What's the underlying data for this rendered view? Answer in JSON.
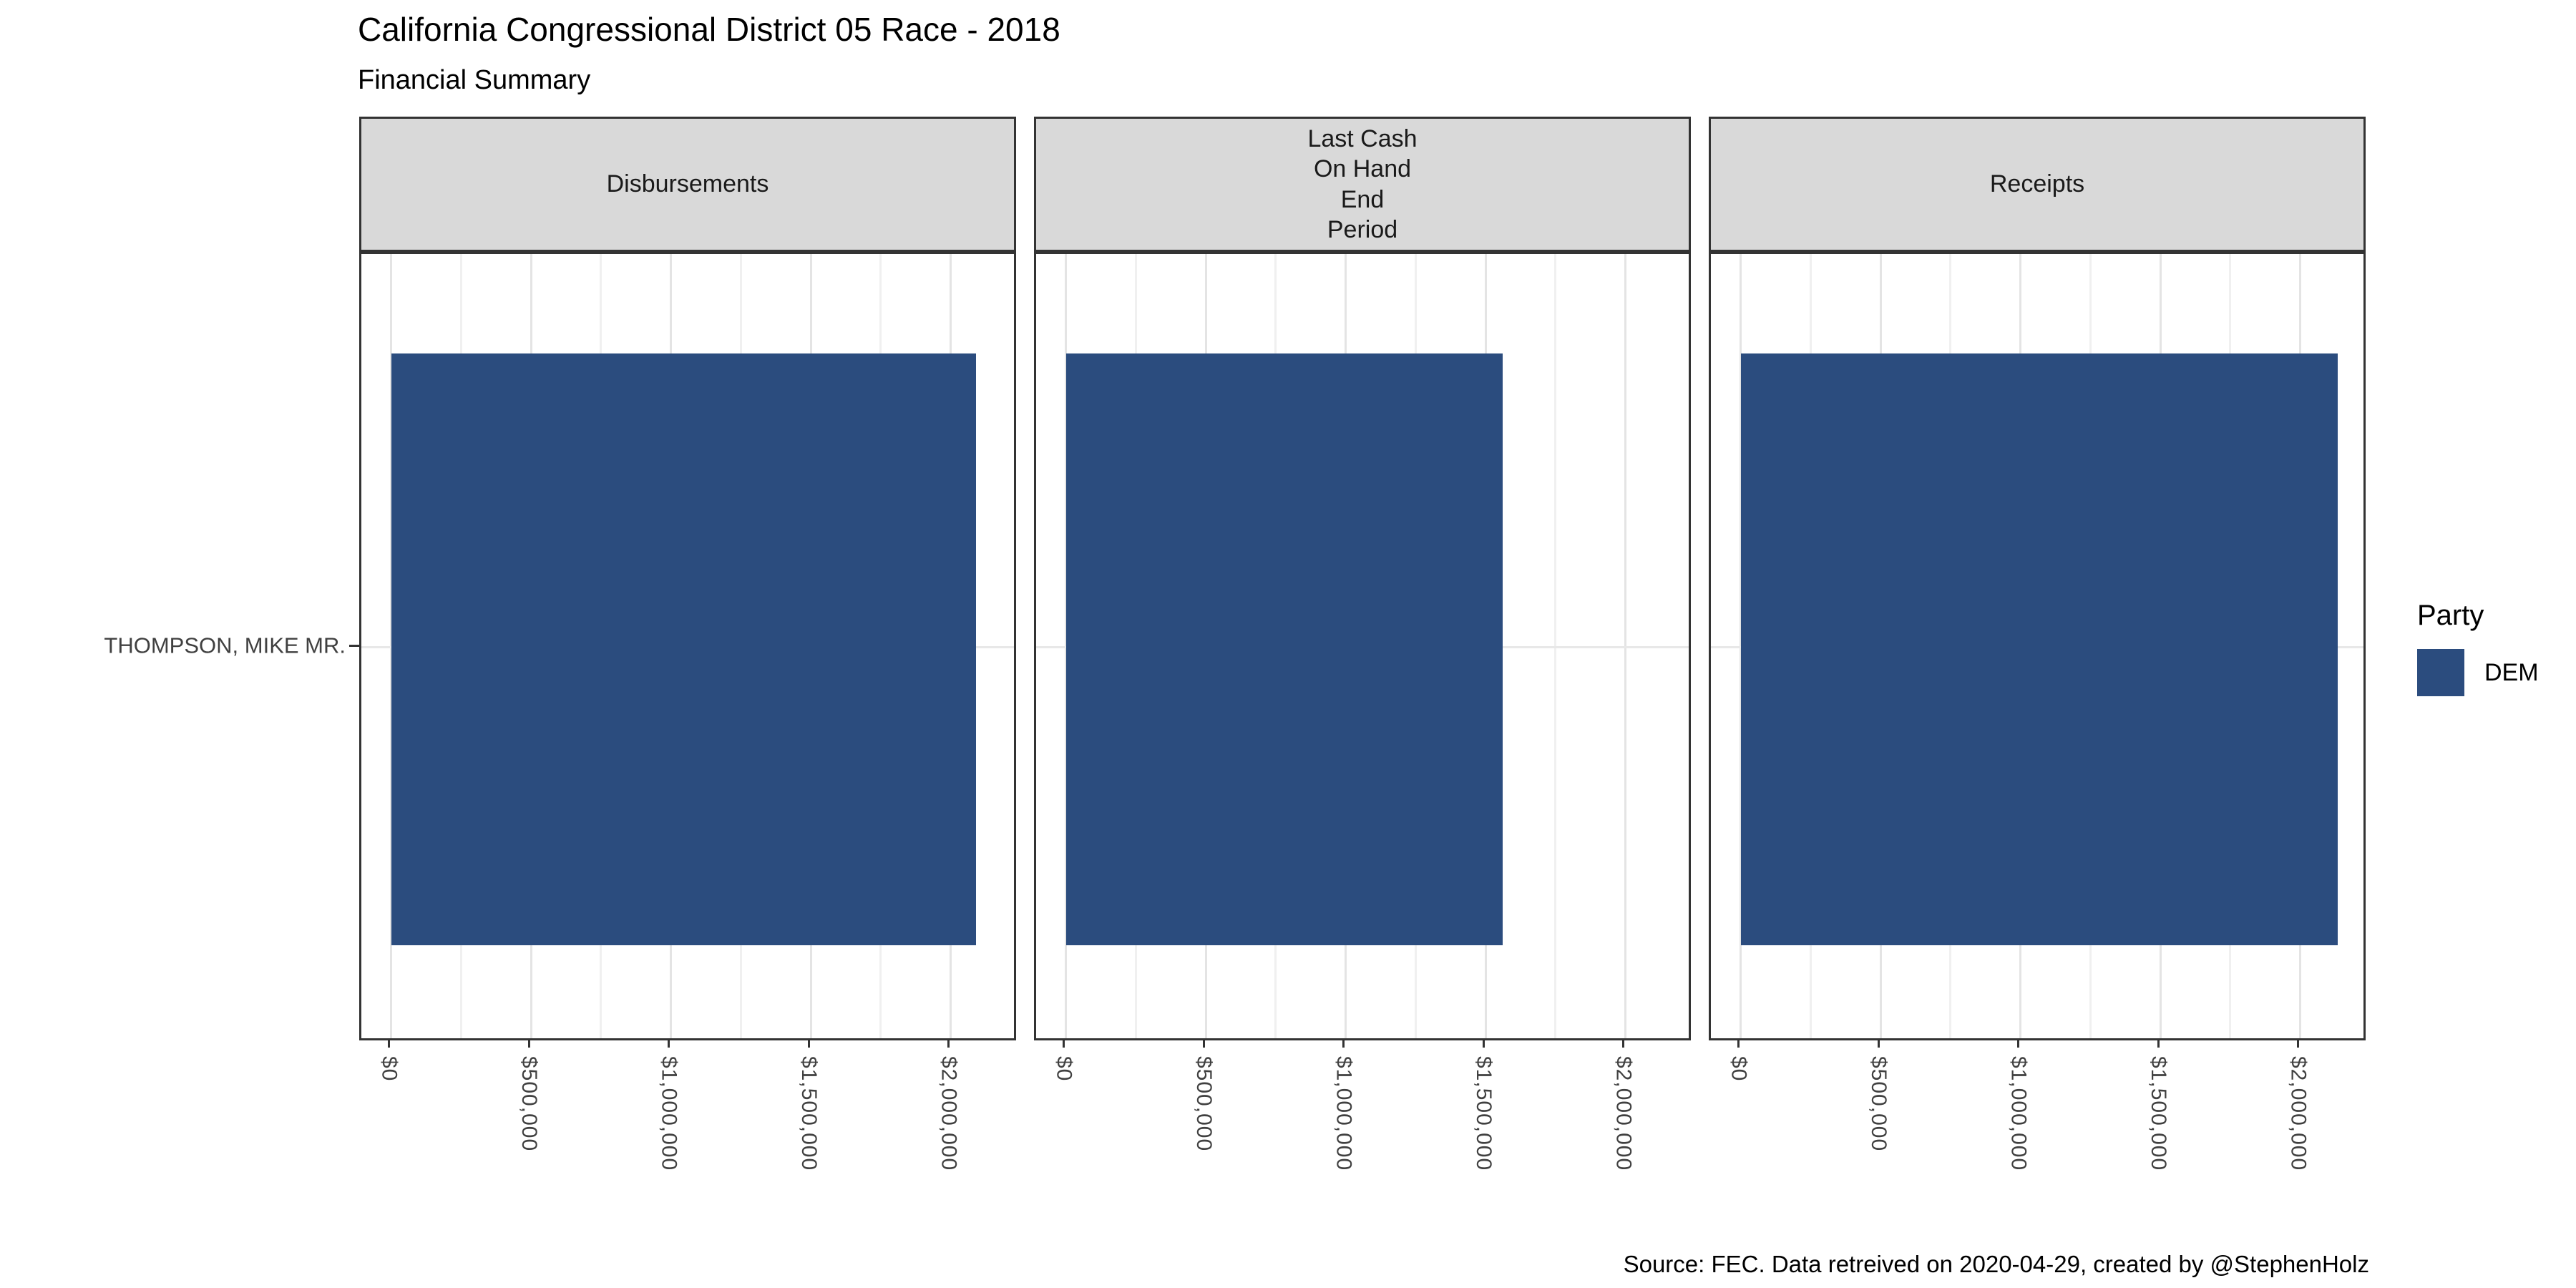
{
  "caption": "Source: FEC. Data retreived on 2020-04-29, created by @StephenHolz",
  "legend": {
    "title": "Party",
    "items": [
      {
        "label": "DEM",
        "color": "#2B4C7E"
      }
    ]
  },
  "colors": {
    "bar": "#2B4C7E",
    "strip_background": "#D9D9D9",
    "panel_border": "#333333",
    "grid_major": "#E4E4E4",
    "grid_minor": "#F0F0F0",
    "axis_text": "#404040"
  },
  "chart_data": {
    "type": "bar",
    "orientation": "horizontal",
    "title": "California Congressional District 05 Race - 2018",
    "subtitle": "Financial Summary",
    "caption": "Source: FEC. Data retreived on 2020-04-29, created by @StephenHolz",
    "categories": [
      "THOMPSON, MIKE MR."
    ],
    "facets": [
      {
        "id": "disbursements",
        "label": "Disbursements",
        "party": "DEM",
        "value": 2090000
      },
      {
        "id": "last-cash-on-hand-end-period",
        "label": "Last Cash\nOn Hand\nEnd\nPeriod",
        "party": "DEM",
        "value": 1560000
      },
      {
        "id": "receipts",
        "label": "Receipts",
        "party": "DEM",
        "value": 2135000
      }
    ],
    "x_ticks": {
      "values": [
        0,
        500000,
        1000000,
        1500000,
        2000000
      ],
      "labels": [
        "$0",
        "$500,000",
        "$1,000,000",
        "$1,500,000",
        "$2,000,000"
      ]
    },
    "x_minor_ticks": [
      250000,
      750000,
      1250000,
      1750000
    ],
    "x_domain": [
      -106750,
      2241750
    ],
    "x_tick_angle": 90,
    "grid": true,
    "bar_color": "#2B4C7E",
    "legend_position": "right"
  }
}
